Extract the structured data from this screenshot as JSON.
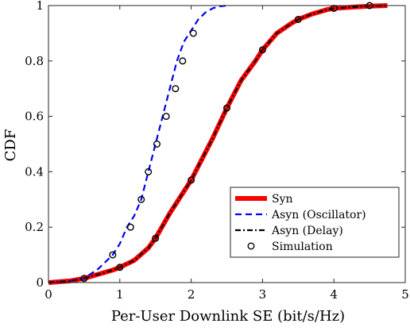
{
  "chart_data": {
    "type": "line",
    "xlabel": "Per-User Downlink SE (bit/s/Hz)",
    "ylabel": "CDF",
    "xlim": [
      0,
      5
    ],
    "ylim": [
      0,
      1
    ],
    "xticks": [
      0,
      1,
      2,
      3,
      4,
      5
    ],
    "yticks": [
      0,
      0.2,
      0.4,
      0.6,
      0.8,
      1
    ],
    "xtick_labels": [
      "0",
      "1",
      "2",
      "3",
      "4",
      "5"
    ],
    "ytick_labels": [
      "0",
      "0.2",
      "0.4",
      "0.6",
      "0.8",
      "1"
    ],
    "grid": false,
    "legend_position": "bottom-right",
    "series": [
      {
        "name": "Syn",
        "style": "solid-thick",
        "color": "#ff0000",
        "x": [
          0,
          0.3,
          0.5,
          0.7,
          0.9,
          1.0,
          1.2,
          1.4,
          1.5,
          1.7,
          1.9,
          2.0,
          2.1,
          2.3,
          2.5,
          2.7,
          2.9,
          3.0,
          3.2,
          3.4,
          3.5,
          3.7,
          3.9,
          4.0,
          4.3,
          4.5,
          4.75
        ],
        "y": [
          0,
          0.006,
          0.015,
          0.03,
          0.045,
          0.055,
          0.08,
          0.125,
          0.16,
          0.25,
          0.33,
          0.37,
          0.42,
          0.52,
          0.63,
          0.73,
          0.8,
          0.84,
          0.9,
          0.935,
          0.95,
          0.97,
          0.985,
          0.99,
          0.995,
          0.998,
          1.0
        ]
      },
      {
        "name": "Asyn (Oscillator)",
        "style": "dashed",
        "color": "#0000ff",
        "x": [
          0,
          0.3,
          0.5,
          0.7,
          0.9,
          1.0,
          1.1,
          1.2,
          1.3,
          1.4,
          1.5,
          1.6,
          1.7,
          1.8,
          1.9,
          2.0,
          2.1,
          2.2,
          2.3,
          2.4,
          2.5
        ],
        "y": [
          0,
          0.006,
          0.015,
          0.05,
          0.1,
          0.14,
          0.2,
          0.24,
          0.3,
          0.4,
          0.5,
          0.6,
          0.7,
          0.8,
          0.87,
          0.91,
          0.95,
          0.975,
          0.99,
          0.997,
          1.0
        ]
      },
      {
        "name": "Asyn (Delay)",
        "style": "dash-dot",
        "color": "#000000",
        "x": [
          0,
          0.3,
          0.5,
          0.7,
          0.9,
          1.0,
          1.2,
          1.4,
          1.5,
          1.7,
          1.9,
          2.0,
          2.1,
          2.3,
          2.5,
          2.7,
          2.9,
          3.0,
          3.2,
          3.4,
          3.5,
          3.7,
          3.9,
          4.0,
          4.3,
          4.5,
          4.75
        ],
        "y": [
          0,
          0.006,
          0.015,
          0.03,
          0.045,
          0.055,
          0.08,
          0.125,
          0.16,
          0.25,
          0.33,
          0.37,
          0.42,
          0.52,
          0.63,
          0.73,
          0.8,
          0.84,
          0.9,
          0.935,
          0.95,
          0.97,
          0.985,
          0.99,
          0.995,
          0.998,
          1.0
        ]
      },
      {
        "name": "Simulation",
        "style": "markers",
        "color": "#000000",
        "x": [
          0.5,
          1.0,
          1.5,
          2.0,
          2.5,
          3.0,
          3.5,
          4.0,
          4.5,
          0.9,
          1.15,
          1.3,
          1.4,
          1.52,
          1.65,
          1.78,
          1.88,
          2.03
        ],
        "y": [
          0.015,
          0.055,
          0.16,
          0.37,
          0.63,
          0.84,
          0.95,
          0.99,
          1.0,
          0.1,
          0.2,
          0.3,
          0.4,
          0.5,
          0.6,
          0.7,
          0.8,
          0.9
        ]
      }
    ]
  }
}
